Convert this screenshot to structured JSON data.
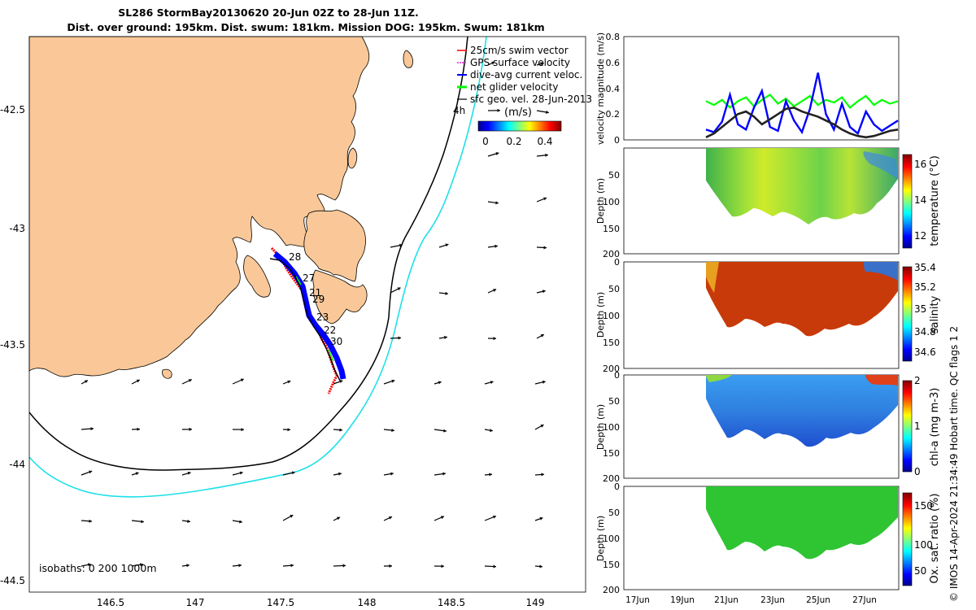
{
  "title_line1": "SL286 StormBay20130620 20-Jun 02Z to 28-Jun 11Z.",
  "title_line2": "Dist. over ground: 195km. Dist. swum: 181km. Mission DOG: 195km. Swum: 181km",
  "credit": "© IMOS 14-Apr-2024 21:34:49 Hobart time. QC flags 1  2",
  "colors": {
    "land": "#fac898",
    "isobath_200": "#000000",
    "isobath_1000": "#1ee0e8",
    "track_red": "#ff0000",
    "track_blue": "#0000ff",
    "track_green": "#00ff00",
    "track_black": "#000000",
    "temp_fill": "#7fd44a",
    "sal_fill": "#c83a0a",
    "chl_fill": "#2f7fe0",
    "ox_fill": "#2ec432"
  },
  "chart_data": [
    {
      "type": "map",
      "x_ticks": [
        "146.5",
        "147",
        "147.5",
        "148",
        "148.5",
        "149"
      ],
      "y_ticks": [
        "-42.5",
        "-43",
        "-43.5",
        "-44",
        "-44.5"
      ],
      "xlim": [
        146.05,
        149.25
      ],
      "ylim": [
        -44.55,
        -42.3
      ],
      "legend": [
        "25cm/s swim vector",
        "GPS surface velocity",
        "dive-avg current veloc.",
        "net glider velocity",
        "sfc geo. vel. 28-Jun-2013"
      ],
      "legend_extra": "4h",
      "colorbar_label": "(m/s)",
      "colorbar_ticks": [
        "0",
        "0.2",
        "0.4"
      ],
      "isobaths_label": "isobaths: 0   200  1000m",
      "day_labels": [
        "28",
        "27",
        "21",
        "29",
        "23",
        "22",
        "30"
      ]
    },
    {
      "type": "line",
      "ylabel": "velocity magnitude (m/s)",
      "yticks": [
        "0",
        "0.2",
        "0.4",
        "0.6",
        "0.8"
      ],
      "ylim": [
        0,
        0.8
      ],
      "series": [
        {
          "values": [
            0.3,
            0.27,
            0.31,
            0.25,
            0.3,
            0.33,
            0.26,
            0.31,
            0.35,
            0.28,
            0.32,
            0.26,
            0.3,
            0.34,
            0.27,
            0.31,
            0.29,
            0.33,
            0.25,
            0.3,
            0.34,
            0.27,
            0.31,
            0.28,
            0.3
          ]
        },
        {
          "values": [
            0.08,
            0.06,
            0.14,
            0.35,
            0.12,
            0.08,
            0.25,
            0.38,
            0.1,
            0.07,
            0.3,
            0.15,
            0.06,
            0.24,
            0.52,
            0.2,
            0.08,
            0.28,
            0.1,
            0.05,
            0.22,
            0.12,
            0.07,
            0.11,
            0.15
          ]
        },
        {
          "values": [
            0.02,
            0.05,
            0.1,
            0.15,
            0.2,
            0.22,
            0.18,
            0.12,
            0.16,
            0.2,
            0.24,
            0.25,
            0.22,
            0.2,
            0.18,
            0.15,
            0.12,
            0.08,
            0.05,
            0.03,
            0.02,
            0.03,
            0.05,
            0.07,
            0.08
          ]
        }
      ]
    },
    {
      "type": "heatmap",
      "ylabel": "Depth (m)",
      "colorbar_label": "temperature (°C)",
      "colorbar_ticks": [
        "12",
        "14",
        "16"
      ],
      "yticks": [
        "0",
        "50",
        "100",
        "150",
        "200"
      ]
    },
    {
      "type": "heatmap",
      "ylabel": "Depth (m)",
      "colorbar_label": "salinity",
      "colorbar_ticks": [
        "34.6",
        "34.8",
        "35",
        "35.2",
        "35.4"
      ],
      "yticks": [
        "0",
        "50",
        "100",
        "150",
        "200"
      ]
    },
    {
      "type": "heatmap",
      "ylabel": "Depth (m)",
      "colorbar_label": "chl-a (mg m-3)",
      "colorbar_ticks": [
        "0",
        "1",
        "2"
      ],
      "yticks": [
        "0",
        "50",
        "100",
        "150",
        "200"
      ]
    },
    {
      "type": "heatmap",
      "ylabel": "Depth (m)",
      "colorbar_label": "Ox. sat. ratio (%)",
      "colorbar_ticks": [
        "50",
        "100",
        "150"
      ],
      "yticks": [
        "0",
        "50",
        "100",
        "150",
        "200"
      ],
      "x_ticks": [
        "17Jun",
        "19Jun",
        "21Jun",
        "23Jun",
        "25Jun",
        "27Jun"
      ]
    }
  ]
}
